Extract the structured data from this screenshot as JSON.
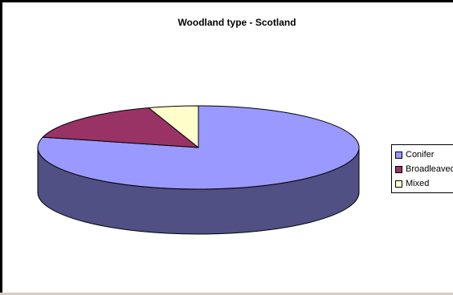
{
  "chart_data": {
    "type": "pie",
    "title": "Woodland type - Scotland",
    "categories": [
      "Conifer",
      "Broadleaved",
      "Mixed"
    ],
    "values": [
      79,
      16,
      5
    ],
    "colors": [
      "#9999ff",
      "#993366",
      "#ffffcc"
    ],
    "legend_position": "right",
    "style": "3d"
  },
  "legend": {
    "items": [
      {
        "label": "Conifer",
        "color": "#9999ff"
      },
      {
        "label": "Broadleaved",
        "color": "#993366"
      },
      {
        "label": "Mixed",
        "color": "#ffffcc"
      }
    ]
  }
}
